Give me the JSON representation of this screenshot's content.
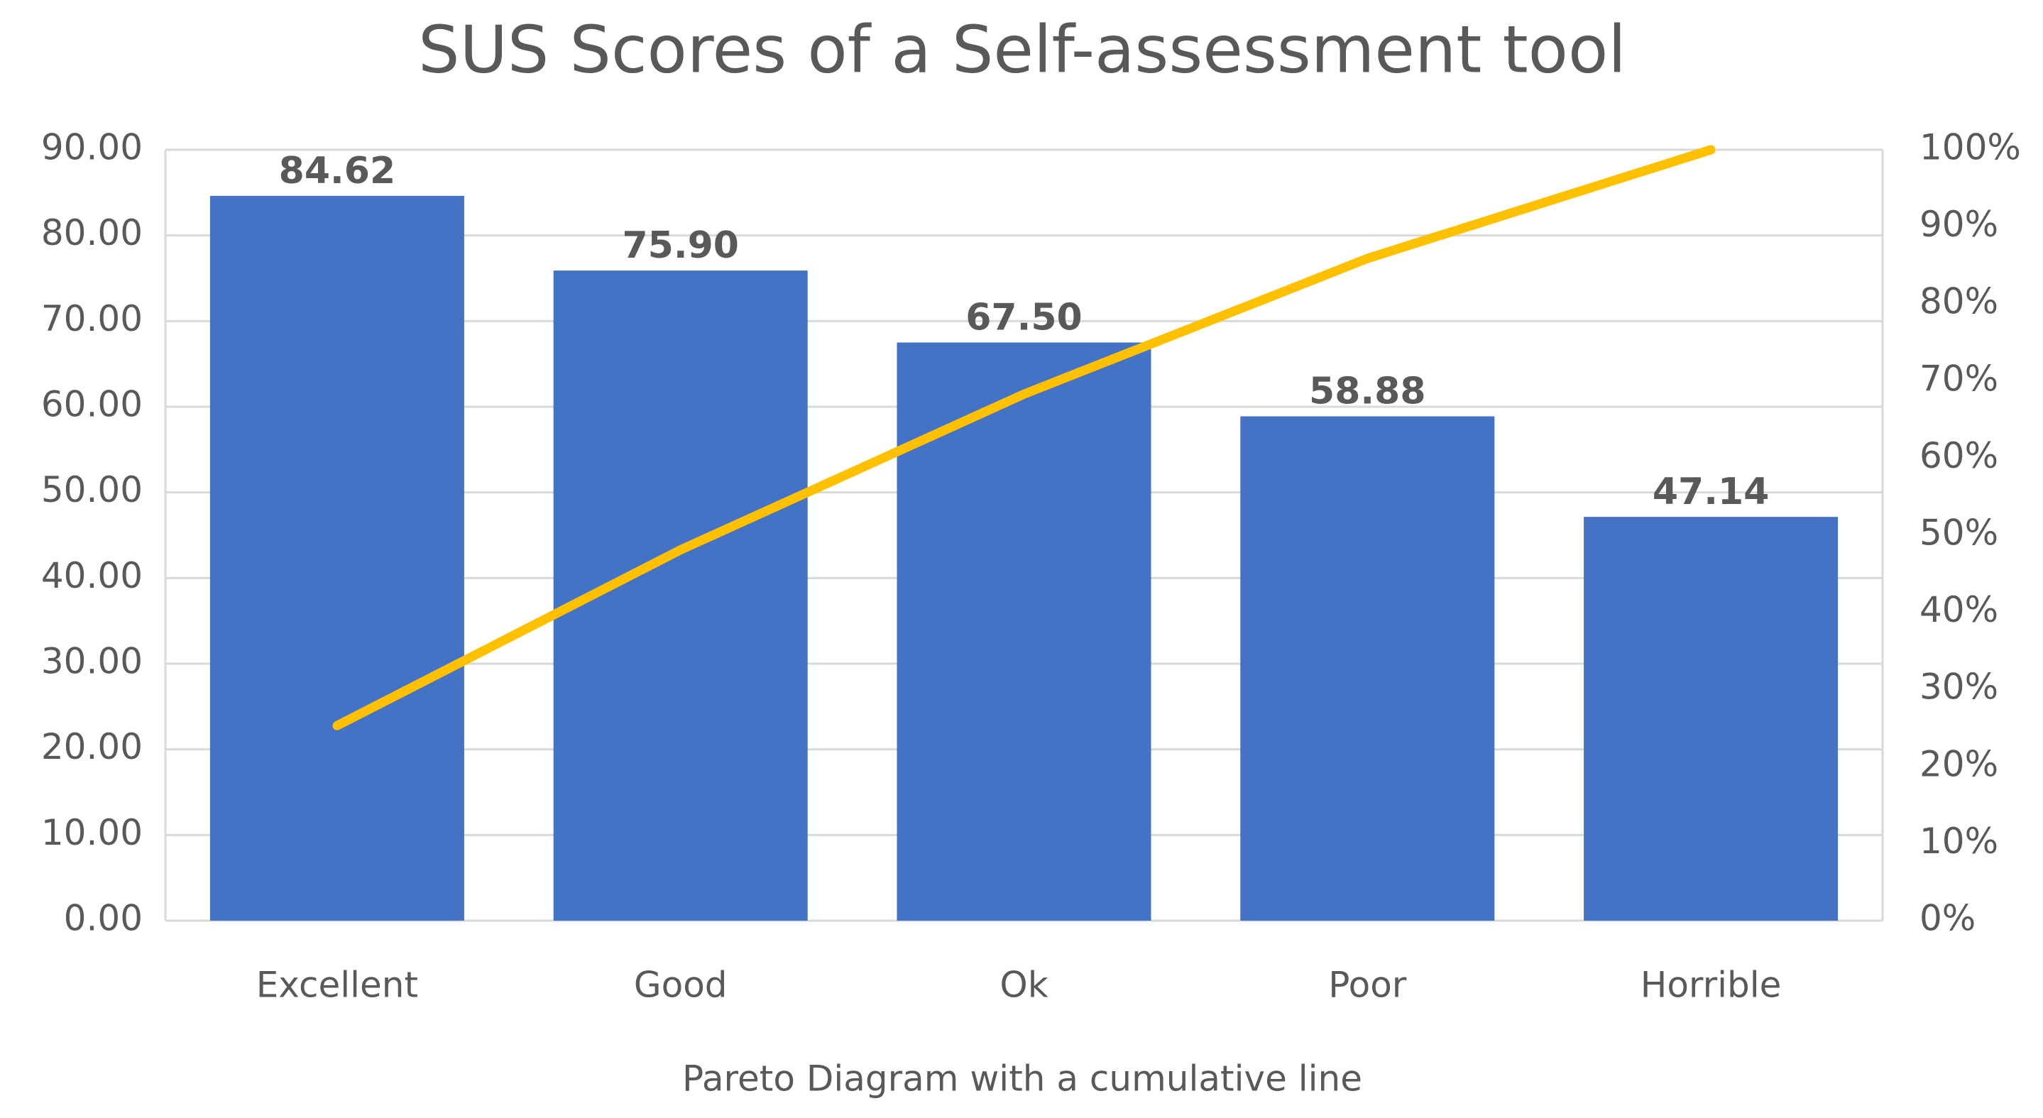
{
  "chart_data": {
    "type": "bar",
    "title": "SUS Scores of a Self-assessment tool",
    "x_label": "Pareto Diagram with a cumulative line",
    "categories": [
      "Excellent",
      "Good",
      "Ok",
      "Poor",
      "Horrible"
    ],
    "series": [
      {
        "type": "bar",
        "color": "#4472c4",
        "values": [
          84.62,
          75.9,
          67.5,
          58.88,
          47.14
        ],
        "value_labels": [
          "84.62",
          "75.90",
          "67.50",
          "58.88",
          "47.14"
        ]
      },
      {
        "type": "line",
        "color": "#ffc000",
        "axis": "y2",
        "values": [
          25.3,
          48.1,
          68.3,
          85.9,
          100
        ]
      }
    ],
    "ylim": [
      0,
      90
    ],
    "yticks": [
      {
        "value": 0,
        "label": "0.00"
      },
      {
        "value": 10,
        "label": "10.00"
      },
      {
        "value": 20,
        "label": "20.00"
      },
      {
        "value": 30,
        "label": "30.00"
      },
      {
        "value": 40,
        "label": "40.00"
      },
      {
        "value": 50,
        "label": "50.00"
      },
      {
        "value": 60,
        "label": "60.00"
      },
      {
        "value": 70,
        "label": "70.00"
      },
      {
        "value": 80,
        "label": "80.00"
      },
      {
        "value": 90,
        "label": "90.00"
      }
    ],
    "y2lim": [
      0,
      100
    ],
    "y2ticks": [
      {
        "value": 0,
        "label": "0%"
      },
      {
        "value": 10,
        "label": "10%"
      },
      {
        "value": 20,
        "label": "20%"
      },
      {
        "value": 30,
        "label": "30%"
      },
      {
        "value": 40,
        "label": "40%"
      },
      {
        "value": 50,
        "label": "50%"
      },
      {
        "value": 60,
        "label": "60%"
      },
      {
        "value": 70,
        "label": "70%"
      },
      {
        "value": 80,
        "label": "80%"
      },
      {
        "value": 90,
        "label": "90%"
      },
      {
        "value": 100,
        "label": "100%"
      }
    ],
    "grid": true
  }
}
